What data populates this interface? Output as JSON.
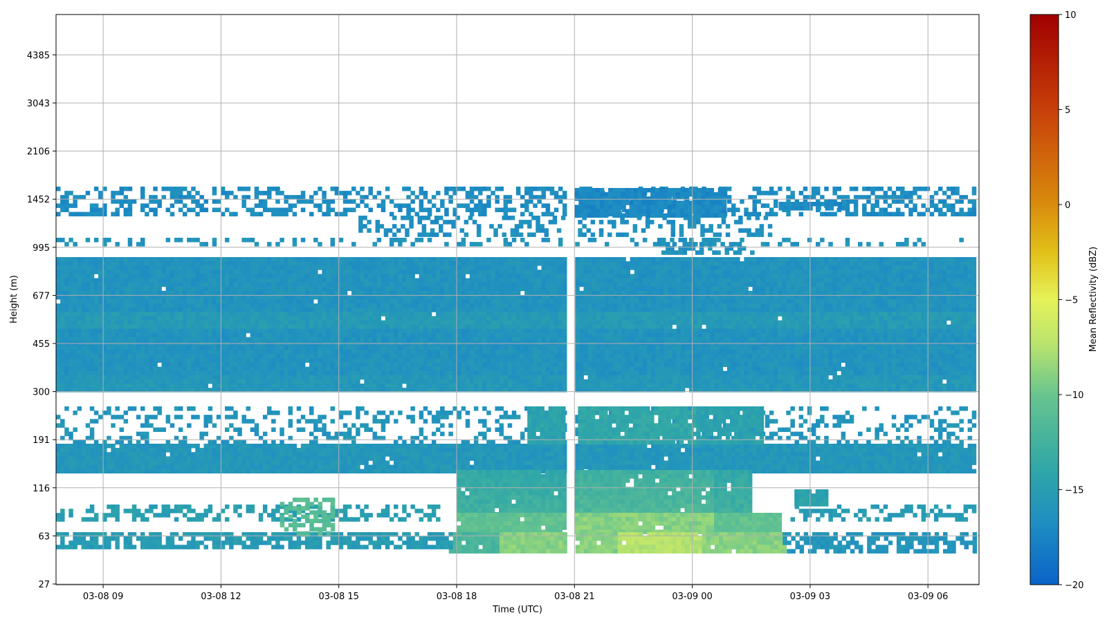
{
  "chart_data": {
    "type": "heatmap",
    "xlabel": "Time (UTC)",
    "ylabel": "Height (m)",
    "colorbar_label": "Mean Reflectivity (dBZ)",
    "x_ticks": [
      "03-08 09",
      "03-08 12",
      "03-08 15",
      "03-08 18",
      "03-08 21",
      "03-09 00",
      "03-09 03",
      "03-09 06"
    ],
    "y_ticks": [
      "27",
      "63",
      "116",
      "191",
      "300",
      "455",
      "677",
      "995",
      "1452",
      "2106",
      "3043",
      "4385"
    ],
    "colorbar_ticks": [
      "10",
      "5",
      "0",
      "−5",
      "−10",
      "−15",
      "−20"
    ],
    "clim": [
      -20,
      10
    ],
    "x_range_hours": [
      7.8,
      31.3
    ],
    "grid": true,
    "colormap": [
      "#0a63c8",
      "#1f8fc2",
      "#2fa6a8",
      "#66c48f",
      "#b8e36e",
      "#e6f25a",
      "#e2c21a",
      "#d88a0c",
      "#c8410a",
      "#a00000"
    ],
    "layers": [
      {
        "band": "1452-995",
        "start": "03-08 07:45",
        "end": "03-09 07:20",
        "mean_dbz": -16.5,
        "gaps": "intermittent"
      },
      {
        "band": "995-300",
        "start": "03-08 07:45",
        "end": "03-09 07:20",
        "mean_dbz": -16,
        "gaps": "03-08 20:50–21:00"
      },
      {
        "band": "191-116",
        "start": "03-08 07:45",
        "end": "03-09 07:20",
        "mean_dbz": -15,
        "gaps": "03-08 20:50–21:00"
      },
      {
        "band": "116-63",
        "start": "03-08 18:00",
        "end": "03-09 00:45",
        "mean_dbz": -12
      },
      {
        "band": "63-27",
        "start": "03-08 18:00",
        "end": "03-09 01:30",
        "mean_dbz": -9
      }
    ]
  }
}
